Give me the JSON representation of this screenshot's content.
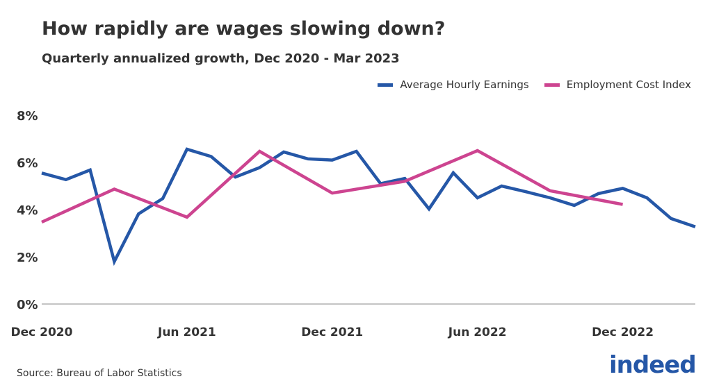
{
  "chart_data": {
    "type": "line",
    "title": "How rapidly are wages slowing down?",
    "subtitle": "Quarterly annualized growth, Dec 2020 -  Mar 2023",
    "source": "Source: Bureau of Labor Statistics",
    "logo": "indeed",
    "legend_position": "top-right",
    "grid": false,
    "ylim": [
      0,
      8
    ],
    "y_ticks": [
      "0%",
      "2%",
      "4%",
      "6%",
      "8%"
    ],
    "x_ticks": [
      {
        "label": "Dec 2020",
        "month": "2020-12"
      },
      {
        "label": "Jun 2021",
        "month": "2021-06"
      },
      {
        "label": "Dec 2021",
        "month": "2021-12"
      },
      {
        "label": "Jun 2022",
        "month": "2022-06"
      },
      {
        "label": "Dec 2022",
        "month": "2022-12"
      }
    ],
    "series": [
      {
        "name": "Average Hourly Earnings",
        "color": "#2557a7",
        "x": [
          "2020-12",
          "2021-01",
          "2021-02",
          "2021-03",
          "2021-04",
          "2021-05",
          "2021-06",
          "2021-07",
          "2021-08",
          "2021-09",
          "2021-10",
          "2021-11",
          "2021-12",
          "2022-01",
          "2022-02",
          "2022-03",
          "2022-04",
          "2022-05",
          "2022-06",
          "2022-07",
          "2022-08",
          "2022-09",
          "2022-10",
          "2022-11",
          "2022-12",
          "2023-01",
          "2023-02",
          "2023-03"
        ],
        "values": [
          5.55,
          5.27,
          5.68,
          1.8,
          3.82,
          4.47,
          6.56,
          6.25,
          5.38,
          5.78,
          6.44,
          6.15,
          6.1,
          6.47,
          5.1,
          5.32,
          4.03,
          5.56,
          4.5,
          5.0,
          4.76,
          4.5,
          4.18,
          4.68,
          4.9,
          4.5,
          3.62,
          3.27
        ]
      },
      {
        "name": "Employment Cost Index",
        "color": "#cd4490",
        "x": [
          "2020-12",
          "2021-03",
          "2021-06",
          "2021-09",
          "2021-12",
          "2022-03",
          "2022-06",
          "2022-09",
          "2022-12"
        ],
        "values": [
          3.47,
          4.87,
          3.68,
          6.47,
          4.7,
          5.2,
          6.5,
          4.8,
          4.22
        ]
      }
    ]
  }
}
